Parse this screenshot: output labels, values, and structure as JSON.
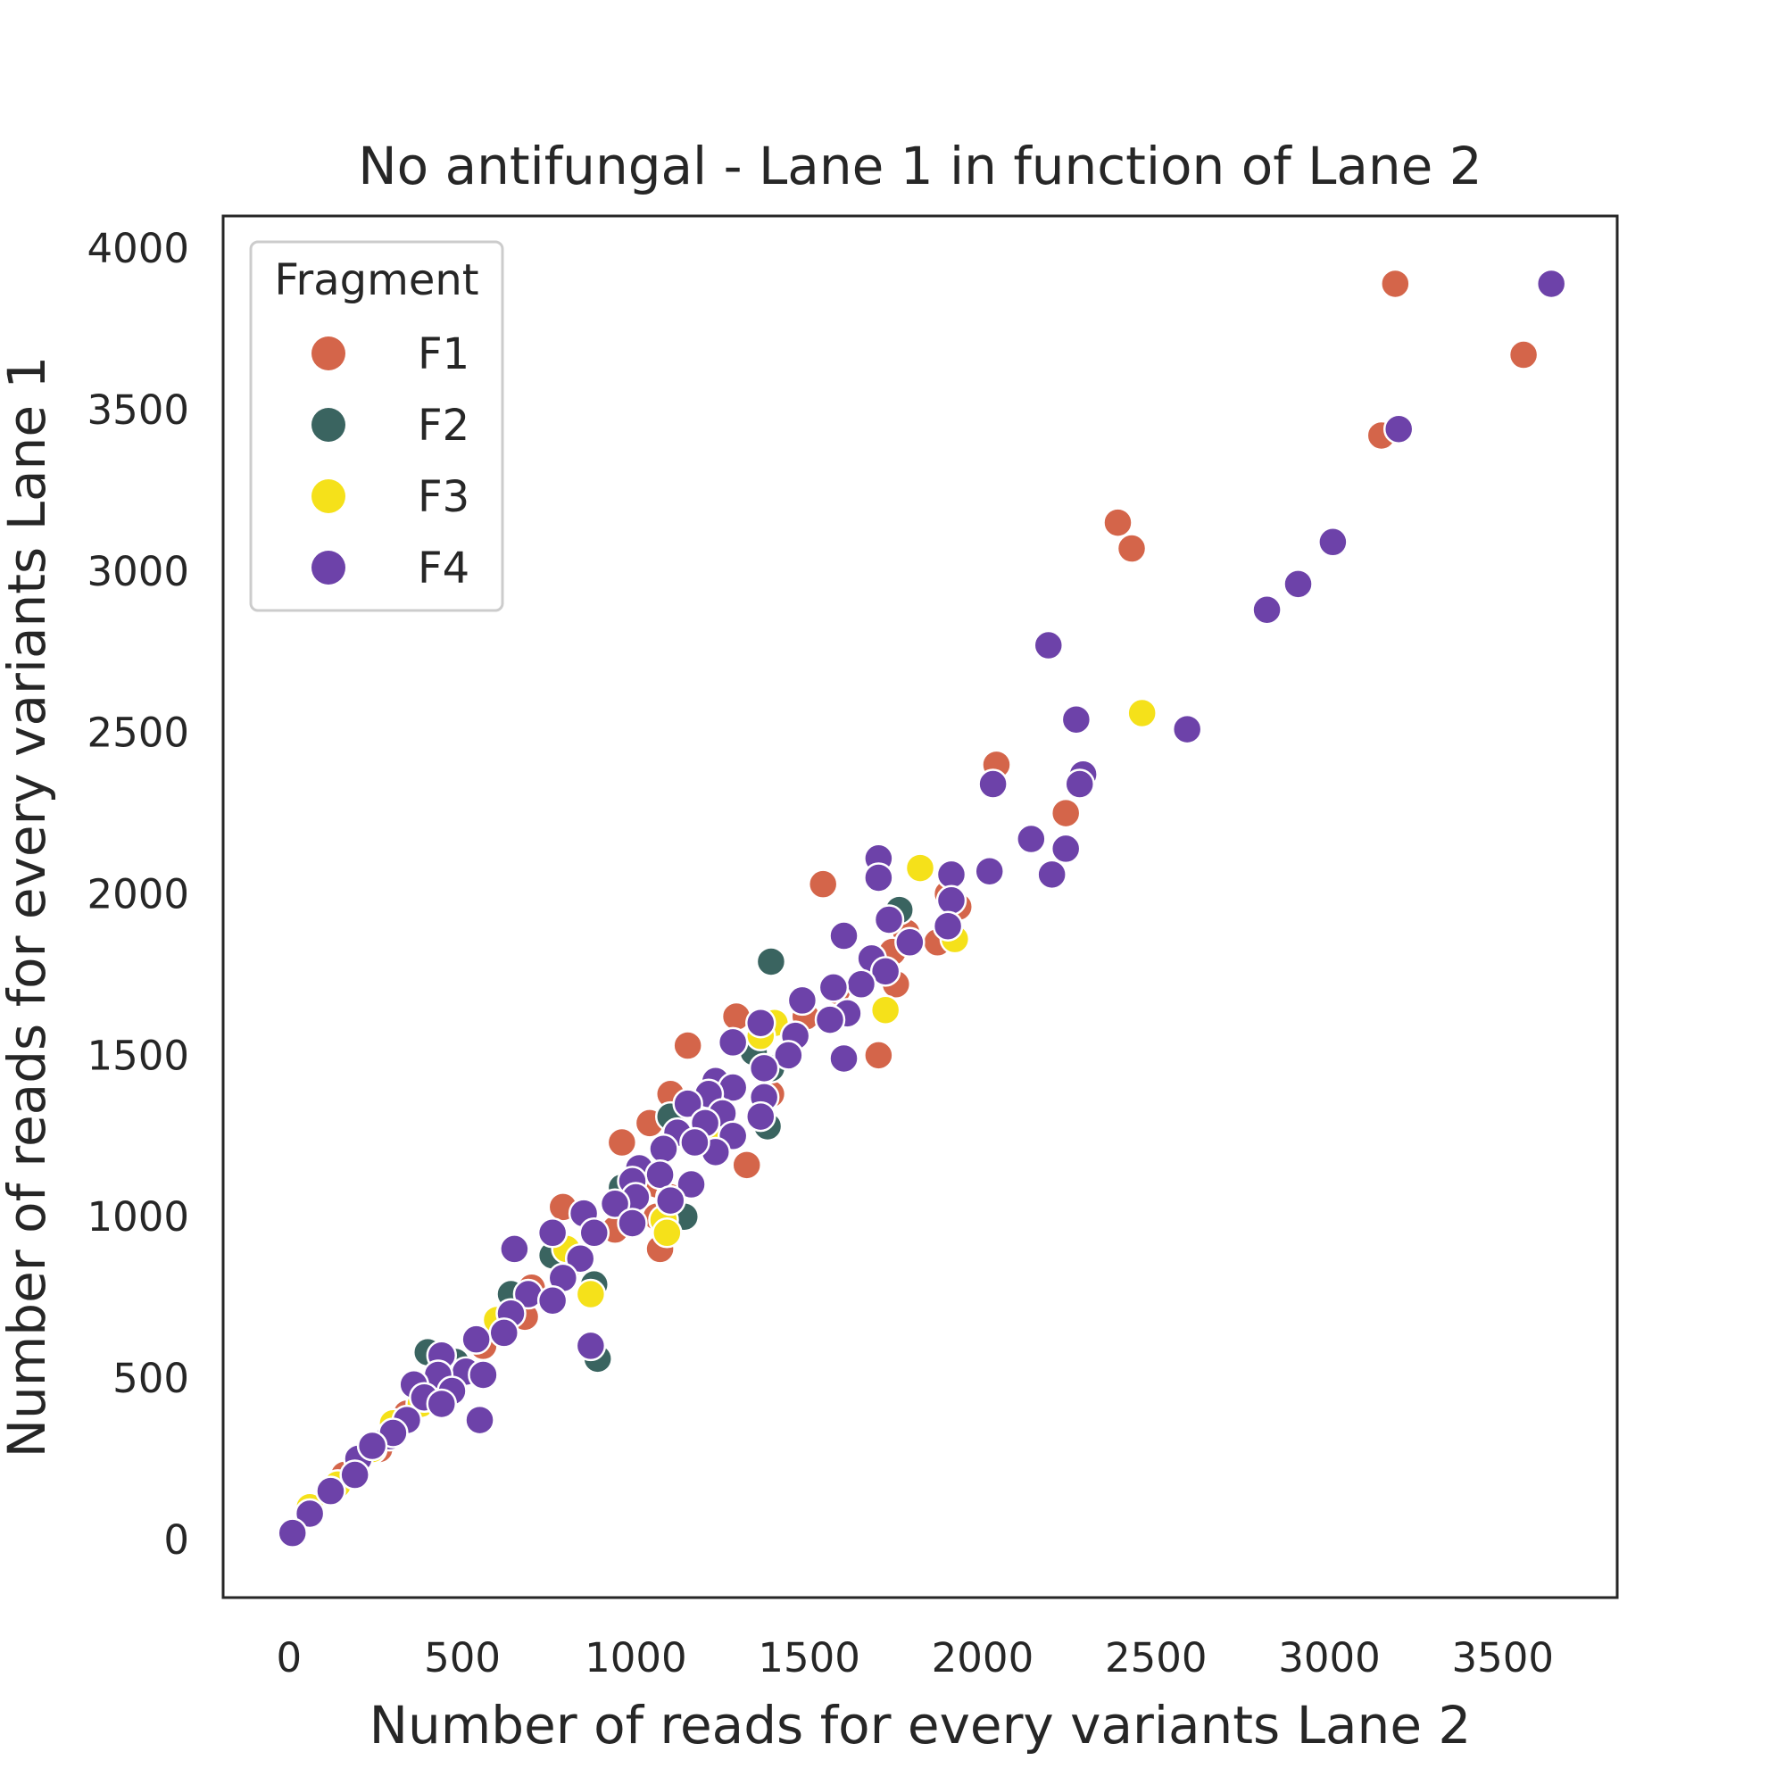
{
  "chart_data": {
    "type": "scatter",
    "title": "No antifungal - Lane 1 in function of Lane 2",
    "xlabel": "Number of reads for every variants Lane 2",
    "ylabel": "Number of reads for every variants Lane 1",
    "xlim": [
      -190,
      3830
    ],
    "ylim": [
      -180,
      4100
    ],
    "xticks": [
      0,
      500,
      1000,
      1500,
      2000,
      2500,
      3000,
      3500
    ],
    "yticks": [
      0,
      500,
      1000,
      1500,
      2000,
      2500,
      3000,
      3500,
      4000
    ],
    "grid": false,
    "legend": {
      "title": "Fragment",
      "position": "top-left"
    },
    "series": [
      {
        "name": "F1",
        "color": "#d4654a",
        "points": [
          [
            3190,
            3890
          ],
          [
            3560,
            3670
          ],
          [
            3150,
            3420
          ],
          [
            2390,
            3150
          ],
          [
            2430,
            3070
          ],
          [
            2040,
            2400
          ],
          [
            2240,
            2250
          ],
          [
            1540,
            2030
          ],
          [
            1900,
            2000
          ],
          [
            1930,
            1960
          ],
          [
            1870,
            1850
          ],
          [
            1780,
            1880
          ],
          [
            1740,
            1820
          ],
          [
            1750,
            1720
          ],
          [
            1490,
            1620
          ],
          [
            1290,
            1620
          ],
          [
            1150,
            1530
          ],
          [
            1100,
            1380
          ],
          [
            1040,
            1290
          ],
          [
            960,
            1230
          ],
          [
            1320,
            1160
          ],
          [
            1060,
            1100
          ],
          [
            1100,
            1060
          ],
          [
            1060,
            1000
          ],
          [
            1070,
            900
          ],
          [
            940,
            960
          ],
          [
            790,
            1030
          ],
          [
            820,
            860
          ],
          [
            700,
            780
          ],
          [
            680,
            690
          ],
          [
            560,
            600
          ],
          [
            460,
            480
          ],
          [
            340,
            390
          ],
          [
            260,
            280
          ],
          [
            160,
            200
          ],
          [
            1700,
            1500
          ],
          [
            1580,
            1700
          ],
          [
            1390,
            1380
          ]
        ]
      },
      {
        "name": "F2",
        "color": "#3a6460",
        "points": [
          [
            1760,
            1950
          ],
          [
            1390,
            1790
          ],
          [
            1390,
            1460
          ],
          [
            1340,
            1510
          ],
          [
            1100,
            1310
          ],
          [
            880,
            790
          ],
          [
            890,
            560
          ],
          [
            400,
            580
          ],
          [
            1140,
            1000
          ],
          [
            960,
            1090
          ],
          [
            640,
            760
          ],
          [
            480,
            550
          ],
          [
            1380,
            1280
          ],
          [
            760,
            880
          ]
        ]
      },
      {
        "name": "F3",
        "color": "#f5e11a",
        "points": [
          [
            2460,
            2560
          ],
          [
            1820,
            2080
          ],
          [
            1920,
            1860
          ],
          [
            1720,
            1640
          ],
          [
            1400,
            1600
          ],
          [
            1360,
            1560
          ],
          [
            1080,
            990
          ],
          [
            1090,
            950
          ],
          [
            870,
            760
          ],
          [
            800,
            900
          ],
          [
            600,
            680
          ],
          [
            380,
            420
          ],
          [
            240,
            280
          ],
          [
            140,
            170
          ],
          [
            60,
            100
          ],
          [
            300,
            360
          ],
          [
            1250,
            1250
          ]
        ]
      },
      {
        "name": "F4",
        "color": "#6d42a9",
        "points": [
          [
            3640,
            3890
          ],
          [
            3200,
            3440
          ],
          [
            3010,
            3090
          ],
          [
            2910,
            2960
          ],
          [
            2820,
            2880
          ],
          [
            2190,
            2770
          ],
          [
            2270,
            2540
          ],
          [
            2590,
            2510
          ],
          [
            2290,
            2370
          ],
          [
            2280,
            2340
          ],
          [
            2030,
            2340
          ],
          [
            2140,
            2170
          ],
          [
            2240,
            2140
          ],
          [
            2020,
            2070
          ],
          [
            2200,
            2060
          ],
          [
            1700,
            2110
          ],
          [
            1700,
            2050
          ],
          [
            1910,
            2060
          ],
          [
            1910,
            1980
          ],
          [
            1900,
            1900
          ],
          [
            1730,
            1920
          ],
          [
            1790,
            1850
          ],
          [
            1600,
            1870
          ],
          [
            1680,
            1800
          ],
          [
            1720,
            1760
          ],
          [
            1650,
            1720
          ],
          [
            1570,
            1710
          ],
          [
            1480,
            1670
          ],
          [
            1610,
            1630
          ],
          [
            1560,
            1610
          ],
          [
            1600,
            1490
          ],
          [
            1360,
            1600
          ],
          [
            1460,
            1560
          ],
          [
            1440,
            1500
          ],
          [
            1280,
            1540
          ],
          [
            1370,
            1460
          ],
          [
            1230,
            1420
          ],
          [
            1280,
            1400
          ],
          [
            1370,
            1370
          ],
          [
            1210,
            1380
          ],
          [
            1150,
            1350
          ],
          [
            1360,
            1310
          ],
          [
            1250,
            1320
          ],
          [
            1200,
            1290
          ],
          [
            1120,
            1260
          ],
          [
            1280,
            1250
          ],
          [
            1230,
            1200
          ],
          [
            1170,
            1230
          ],
          [
            1080,
            1210
          ],
          [
            1010,
            1150
          ],
          [
            1070,
            1130
          ],
          [
            990,
            1110
          ],
          [
            1160,
            1100
          ],
          [
            1000,
            1060
          ],
          [
            940,
            1040
          ],
          [
            850,
            1010
          ],
          [
            990,
            980
          ],
          [
            880,
            950
          ],
          [
            840,
            870
          ],
          [
            790,
            810
          ],
          [
            690,
            760
          ],
          [
            760,
            740
          ],
          [
            640,
            700
          ],
          [
            620,
            640
          ],
          [
            540,
            620
          ],
          [
            440,
            570
          ],
          [
            510,
            520
          ],
          [
            430,
            510
          ],
          [
            560,
            510
          ],
          [
            360,
            480
          ],
          [
            390,
            440
          ],
          [
            470,
            460
          ],
          [
            290,
            320
          ],
          [
            340,
            370
          ],
          [
            200,
            250
          ],
          [
            190,
            200
          ],
          [
            120,
            150
          ],
          [
            60,
            80
          ],
          [
            10,
            20
          ],
          [
            550,
            370
          ],
          [
            870,
            600
          ],
          [
            440,
            420
          ],
          [
            300,
            330
          ],
          [
            240,
            290
          ],
          [
            650,
            900
          ],
          [
            760,
            950
          ],
          [
            1100,
            1050
          ]
        ]
      }
    ]
  }
}
